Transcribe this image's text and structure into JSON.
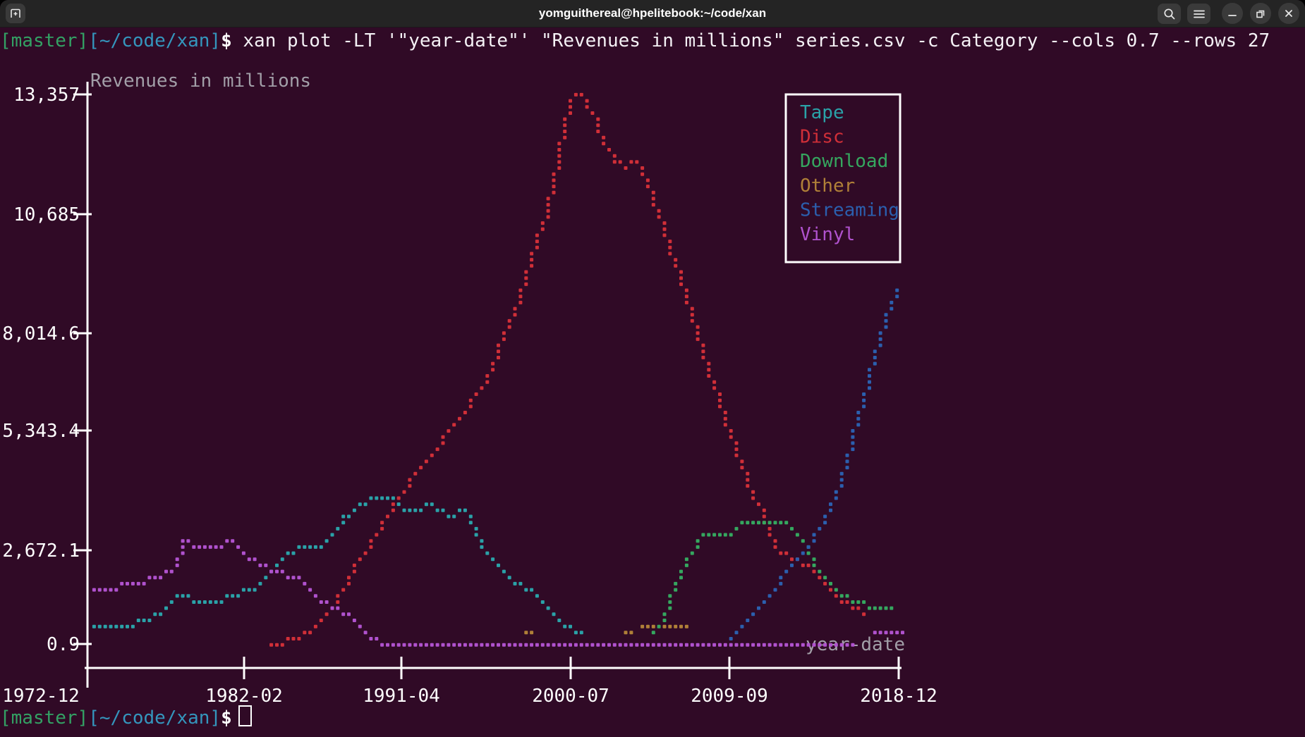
{
  "titlebar": {
    "title": "yomguithereal@hpelitebook:~/code/xan"
  },
  "shell": {
    "prompt_git": "[master]",
    "prompt_path": "[~/code/xan]",
    "prompt_symbol": "$",
    "command": " xan plot -LT '\"year-date\"' \"Revenues in millions\" series.csv -c Category --cols 0.7 --rows 27"
  },
  "colors": {
    "terminal_bg": "#300a26",
    "titlebar_bg": "#242424",
    "axis_white": "#ffffff",
    "label_gray": "#a29fa8",
    "prompt_green": "#33a164",
    "prompt_blue": "#3496bd"
  },
  "chart_data": {
    "type": "line",
    "title": "Revenues in millions",
    "xlabel": "year-date",
    "ylabel": "Revenues in millions",
    "x_ticks": [
      "1972-12",
      "1982-02",
      "1991-04",
      "2000-07",
      "2009-09",
      "2018-12"
    ],
    "y_ticks": [
      "13,357",
      "10,685",
      "8,014.6",
      "5,343.4",
      "2,672.1",
      "0.9"
    ],
    "x_range_years": [
      1972.92,
      2019.2
    ],
    "ylim": [
      0.9,
      13357
    ],
    "grid": false,
    "legend_position": "top-right",
    "series": [
      {
        "name": "Tape",
        "color": "#2aa2a8",
        "segments": [
          [
            [
              1973.0,
              500
            ],
            [
              1975.6,
              500
            ],
            [
              1976.2,
              650
            ],
            [
              1976.9,
              760
            ],
            [
              1977.3,
              960
            ],
            [
              1977.6,
              1060
            ],
            [
              1978.1,
              1215
            ],
            [
              1978.6,
              1215
            ],
            [
              1978.9,
              1060
            ],
            [
              1980.5,
              1060
            ],
            [
              1980.8,
              1215
            ],
            [
              1981.4,
              1215
            ],
            [
              1981.8,
              1320
            ],
            [
              1982.4,
              1320
            ],
            [
              1983.2,
              1700
            ],
            [
              1983.9,
              2110
            ],
            [
              1984.3,
              2240
            ],
            [
              1984.9,
              2360
            ],
            [
              1986.2,
              2360
            ],
            [
              1986.5,
              2480
            ],
            [
              1986.9,
              2670
            ],
            [
              1987.2,
              2960
            ],
            [
              1987.5,
              3100
            ],
            [
              1987.9,
              3270
            ],
            [
              1988.2,
              3410
            ],
            [
              1988.8,
              3530
            ],
            [
              1989.5,
              3530
            ],
            [
              1989.7,
              3660
            ],
            [
              1990.2,
              3530
            ],
            [
              1990.6,
              3410
            ],
            [
              1991.0,
              3270
            ],
            [
              1991.7,
              3270
            ],
            [
              1992.0,
              3410
            ],
            [
              1992.4,
              3410
            ],
            [
              1992.7,
              3270
            ],
            [
              1993.1,
              3270
            ],
            [
              1993.4,
              3080
            ],
            [
              1993.7,
              3080
            ],
            [
              1994.0,
              3270
            ],
            [
              1994.3,
              3270
            ],
            [
              1994.6,
              3080
            ],
            [
              1994.9,
              2820
            ],
            [
              1995.2,
              2500
            ],
            [
              1995.5,
              2360
            ],
            [
              1995.9,
              2120
            ],
            [
              1996.2,
              1920
            ],
            [
              1996.5,
              1800
            ],
            [
              1996.8,
              1660
            ],
            [
              1997.1,
              1540
            ],
            [
              1997.5,
              1540
            ],
            [
              1997.8,
              1320
            ],
            [
              1998.2,
              1320
            ],
            [
              1998.5,
              1200
            ],
            [
              1998.8,
              1060
            ],
            [
              1999.1,
              940
            ],
            [
              1999.4,
              750
            ],
            [
              1999.7,
              600
            ],
            [
              2000.1,
              500
            ],
            [
              2000.4,
              500
            ],
            [
              2000.7,
              360
            ],
            [
              2001.0,
              360
            ]
          ]
        ]
      },
      {
        "name": "Disc",
        "color": "#d02f38",
        "segments": [
          [
            [
              1983.3,
              20
            ],
            [
              1984.1,
              100
            ],
            [
              1984.7,
              170
            ],
            [
              1985.3,
              300
            ],
            [
              1985.7,
              450
            ],
            [
              1986.1,
              650
            ],
            [
              1986.5,
              790
            ],
            [
              1986.9,
              1060
            ],
            [
              1987.3,
              1320
            ],
            [
              1987.7,
              1540
            ],
            [
              1988.0,
              1920
            ],
            [
              1988.5,
              2120
            ],
            [
              1988.9,
              2480
            ],
            [
              1989.3,
              2700
            ],
            [
              1989.6,
              2960
            ],
            [
              1989.9,
              3100
            ],
            [
              1990.2,
              3410
            ],
            [
              1990.5,
              3530
            ],
            [
              1990.8,
              3680
            ],
            [
              1991.1,
              3870
            ],
            [
              1991.4,
              4140
            ],
            [
              1991.9,
              4400
            ],
            [
              1992.2,
              4570
            ],
            [
              1992.5,
              4690
            ],
            [
              1992.8,
              4830
            ],
            [
              1993.0,
              5020
            ],
            [
              1993.3,
              5150
            ],
            [
              1993.6,
              5310
            ],
            [
              1993.8,
              5410
            ],
            [
              1994.1,
              5570
            ],
            [
              1994.3,
              5700
            ],
            [
              1994.6,
              5860
            ],
            [
              1994.9,
              6000
            ],
            [
              1995.2,
              6250
            ],
            [
              1995.6,
              6600
            ],
            [
              1996.0,
              7000
            ],
            [
              1996.4,
              7400
            ],
            [
              1996.8,
              7800
            ],
            [
              1997.2,
              8200
            ],
            [
              1997.6,
              8700
            ],
            [
              1998.0,
              9300
            ],
            [
              1998.4,
              9900
            ],
            [
              1998.8,
              10400
            ],
            [
              1999.2,
              11000
            ],
            [
              1999.5,
              11700
            ],
            [
              1999.8,
              12400
            ],
            [
              2000.1,
              12900
            ],
            [
              2000.4,
              13250
            ],
            [
              2000.7,
              13357
            ],
            [
              2001.0,
              13300
            ],
            [
              2001.4,
              13000
            ],
            [
              2001.8,
              12600
            ],
            [
              2002.2,
              12200
            ],
            [
              2002.6,
              11900
            ],
            [
              2003.0,
              11700
            ],
            [
              2003.4,
              11620
            ],
            [
              2003.7,
              11750
            ],
            [
              2004.0,
              11730
            ],
            [
              2004.3,
              11500
            ],
            [
              2004.7,
              11100
            ],
            [
              2005.1,
              10600
            ],
            [
              2005.5,
              10100
            ],
            [
              2005.9,
              9600
            ],
            [
              2006.3,
              9100
            ],
            [
              2006.7,
              8600
            ],
            [
              2007.1,
              8000
            ],
            [
              2007.5,
              7400
            ],
            [
              2007.9,
              6900
            ],
            [
              2008.3,
              6400
            ],
            [
              2008.7,
              5900
            ],
            [
              2009.1,
              5400
            ],
            [
              2009.5,
              4900
            ],
            [
              2009.9,
              4400
            ],
            [
              2010.3,
              4000
            ],
            [
              2010.7,
              3600
            ],
            [
              2011.1,
              3270
            ],
            [
              2011.5,
              2800
            ],
            [
              2011.9,
              2480
            ],
            [
              2012.3,
              2230
            ],
            [
              2012.9,
              2120
            ],
            [
              2013.3,
              2100
            ],
            [
              2013.8,
              1900
            ],
            [
              2014.4,
              1600
            ],
            [
              2015.0,
              1340
            ],
            [
              2015.4,
              1200
            ],
            [
              2015.9,
              1080
            ],
            [
              2016.6,
              900
            ],
            [
              2017.2,
              740
            ]
          ]
        ]
      },
      {
        "name": "Download",
        "color": "#35a75f",
        "segments": [
          [
            [
              2004.8,
              150
            ],
            [
              2005.2,
              420
            ],
            [
              2005.7,
              800
            ],
            [
              2006.1,
              1340
            ],
            [
              2006.5,
              1730
            ],
            [
              2007.0,
              2110
            ],
            [
              2007.4,
              2410
            ],
            [
              2007.9,
              2690
            ],
            [
              2009.6,
              2690
            ],
            [
              2009.9,
              2930
            ],
            [
              2012.6,
              2990
            ],
            [
              2013.2,
              2690
            ],
            [
              2013.8,
              2300
            ],
            [
              2014.2,
              1930
            ],
            [
              2014.7,
              1630
            ],
            [
              2015.2,
              1400
            ],
            [
              2015.8,
              1200
            ],
            [
              2016.4,
              1060
            ],
            [
              2017.1,
              990
            ],
            [
              2018.0,
              950
            ],
            [
              2018.7,
              940
            ]
          ]
        ]
      },
      {
        "name": "Other",
        "color": "#b08038",
        "segments": [
          [
            [
              1997.6,
              360
            ],
            [
              1998.4,
              360
            ]
          ],
          [
            [
              2003.4,
              380
            ],
            [
              2003.9,
              380
            ]
          ],
          [
            [
              2004.1,
              500
            ],
            [
              2005.3,
              500
            ]
          ],
          [
            [
              2005.6,
              420
            ],
            [
              2007.0,
              420
            ]
          ]
        ]
      },
      {
        "name": "Streaming",
        "color": "#2b5fae",
        "segments": [
          [
            [
              2009.4,
              220
            ],
            [
              2009.8,
              360
            ],
            [
              2010.4,
              600
            ],
            [
              2011.0,
              900
            ],
            [
              2011.6,
              1250
            ],
            [
              2012.2,
              1590
            ],
            [
              2012.8,
              1930
            ],
            [
              2013.4,
              2190
            ],
            [
              2014.0,
              2530
            ],
            [
              2014.5,
              2960
            ],
            [
              2015.0,
              3300
            ],
            [
              2015.3,
              3650
            ],
            [
              2015.6,
              3990
            ],
            [
              2016.0,
              4600
            ],
            [
              2016.4,
              5360
            ],
            [
              2017.0,
              6200
            ],
            [
              2017.4,
              6900
            ],
            [
              2018.0,
              7750
            ],
            [
              2018.6,
              8440
            ],
            [
              2019.1,
              8800
            ]
          ]
        ]
      },
      {
        "name": "Vinyl",
        "color": "#b052ce",
        "segments": [
          [
            [
              1973.0,
              1320
            ],
            [
              1974.5,
              1320
            ],
            [
              1975.0,
              1540
            ],
            [
              1976.0,
              1540
            ],
            [
              1976.4,
              1660
            ],
            [
              1977.0,
              1660
            ],
            [
              1977.4,
              1800
            ],
            [
              1977.9,
              1800
            ],
            [
              1978.1,
              2360
            ],
            [
              1978.2,
              2700
            ],
            [
              1978.5,
              2480
            ],
            [
              1978.9,
              2480
            ],
            [
              1979.3,
              2360
            ],
            [
              1980.5,
              2360
            ],
            [
              1980.8,
              2480
            ],
            [
              1981.2,
              2480
            ],
            [
              1981.5,
              2360
            ],
            [
              1981.8,
              2230
            ],
            [
              1982.1,
              2110
            ],
            [
              1982.5,
              2110
            ],
            [
              1982.8,
              1920
            ],
            [
              1983.1,
              1920
            ],
            [
              1983.4,
              1800
            ],
            [
              1984.0,
              1800
            ],
            [
              1984.5,
              1660
            ],
            [
              1984.9,
              1660
            ],
            [
              1985.2,
              1540
            ],
            [
              1985.6,
              1370
            ],
            [
              1985.9,
              1215
            ],
            [
              1986.2,
              1060
            ],
            [
              1986.5,
              1060
            ],
            [
              1986.9,
              940
            ],
            [
              1987.4,
              750
            ],
            [
              1987.8,
              750
            ],
            [
              1988.1,
              620
            ],
            [
              1988.4,
              510
            ],
            [
              1988.7,
              360
            ],
            [
              1989.1,
              170
            ],
            [
              1989.6,
              40
            ],
            [
              1990.3,
              15
            ],
            [
              2011.5,
              15
            ],
            [
              2011.7,
              80
            ],
            [
              2013.4,
              80
            ],
            [
              2013.7,
              15
            ],
            [
              2016.6,
              15
            ]
          ],
          [
            [
              2017.3,
              300
            ],
            [
              2017.7,
              380
            ],
            [
              2019.2,
              390
            ]
          ]
        ]
      }
    ]
  }
}
